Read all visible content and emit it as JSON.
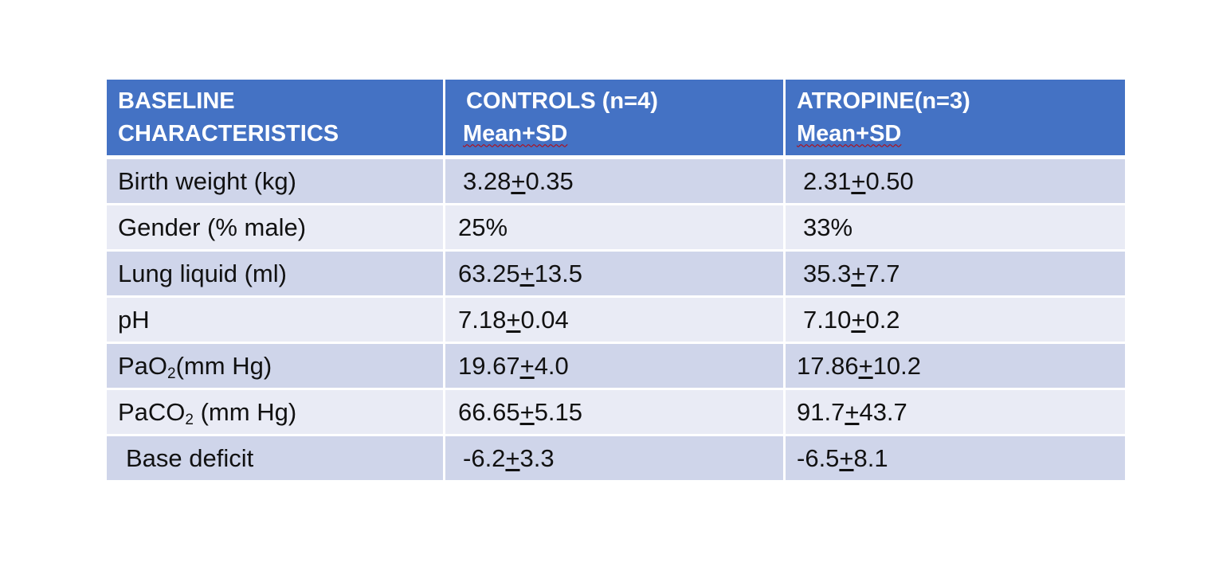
{
  "header": {
    "col1": {
      "line1": "BASELINE",
      "line2": "CHARACTERISTICS"
    },
    "col2": {
      "line1": "CONTROLS (n=4)",
      "line2": "Mean+SD"
    },
    "col3": {
      "line1": "ATROPINE(n=3)",
      "line2": "Mean+SD"
    }
  },
  "rows": [
    {
      "label": "Birth weight (kg)",
      "controls": {
        "mean": "3.28",
        "sd": "0.35"
      },
      "atropine": {
        "mean": "2.31",
        "sd": "0.50"
      }
    },
    {
      "label": "Gender (% male)",
      "controls_text": "25%",
      "atropine_text": "33%"
    },
    {
      "label": "Lung liquid (ml)",
      "controls": {
        "mean": "63.25",
        "sd": "13.5"
      },
      "atropine": {
        "mean": "35.3",
        "sd": "7.7"
      }
    },
    {
      "label": "pH",
      "controls": {
        "mean": "7.18",
        "sd": "0.04"
      },
      "atropine": {
        "mean": "7.10",
        "sd": "0.2"
      }
    },
    {
      "label_pre": "PaO",
      "label_sub": "2",
      "label_post": "(mm Hg)",
      "controls": {
        "mean": "19.67",
        "sd": "4.0"
      },
      "atropine": {
        "mean": "17.86",
        "sd": "10.2"
      }
    },
    {
      "label_pre": "PaCO",
      "label_sub": "2",
      "label_post": " (mm Hg)",
      "controls": {
        "mean": "66.65",
        "sd": "5.15"
      },
      "atropine": {
        "mean": "91.7",
        "sd": "43.7"
      }
    },
    {
      "label": "Base deficit",
      "controls": {
        "mean": "-6.2",
        "sd": "3.3"
      },
      "atropine": {
        "mean": "-6.5",
        "sd": "8.1"
      }
    }
  ],
  "pm_symbol": "+"
}
